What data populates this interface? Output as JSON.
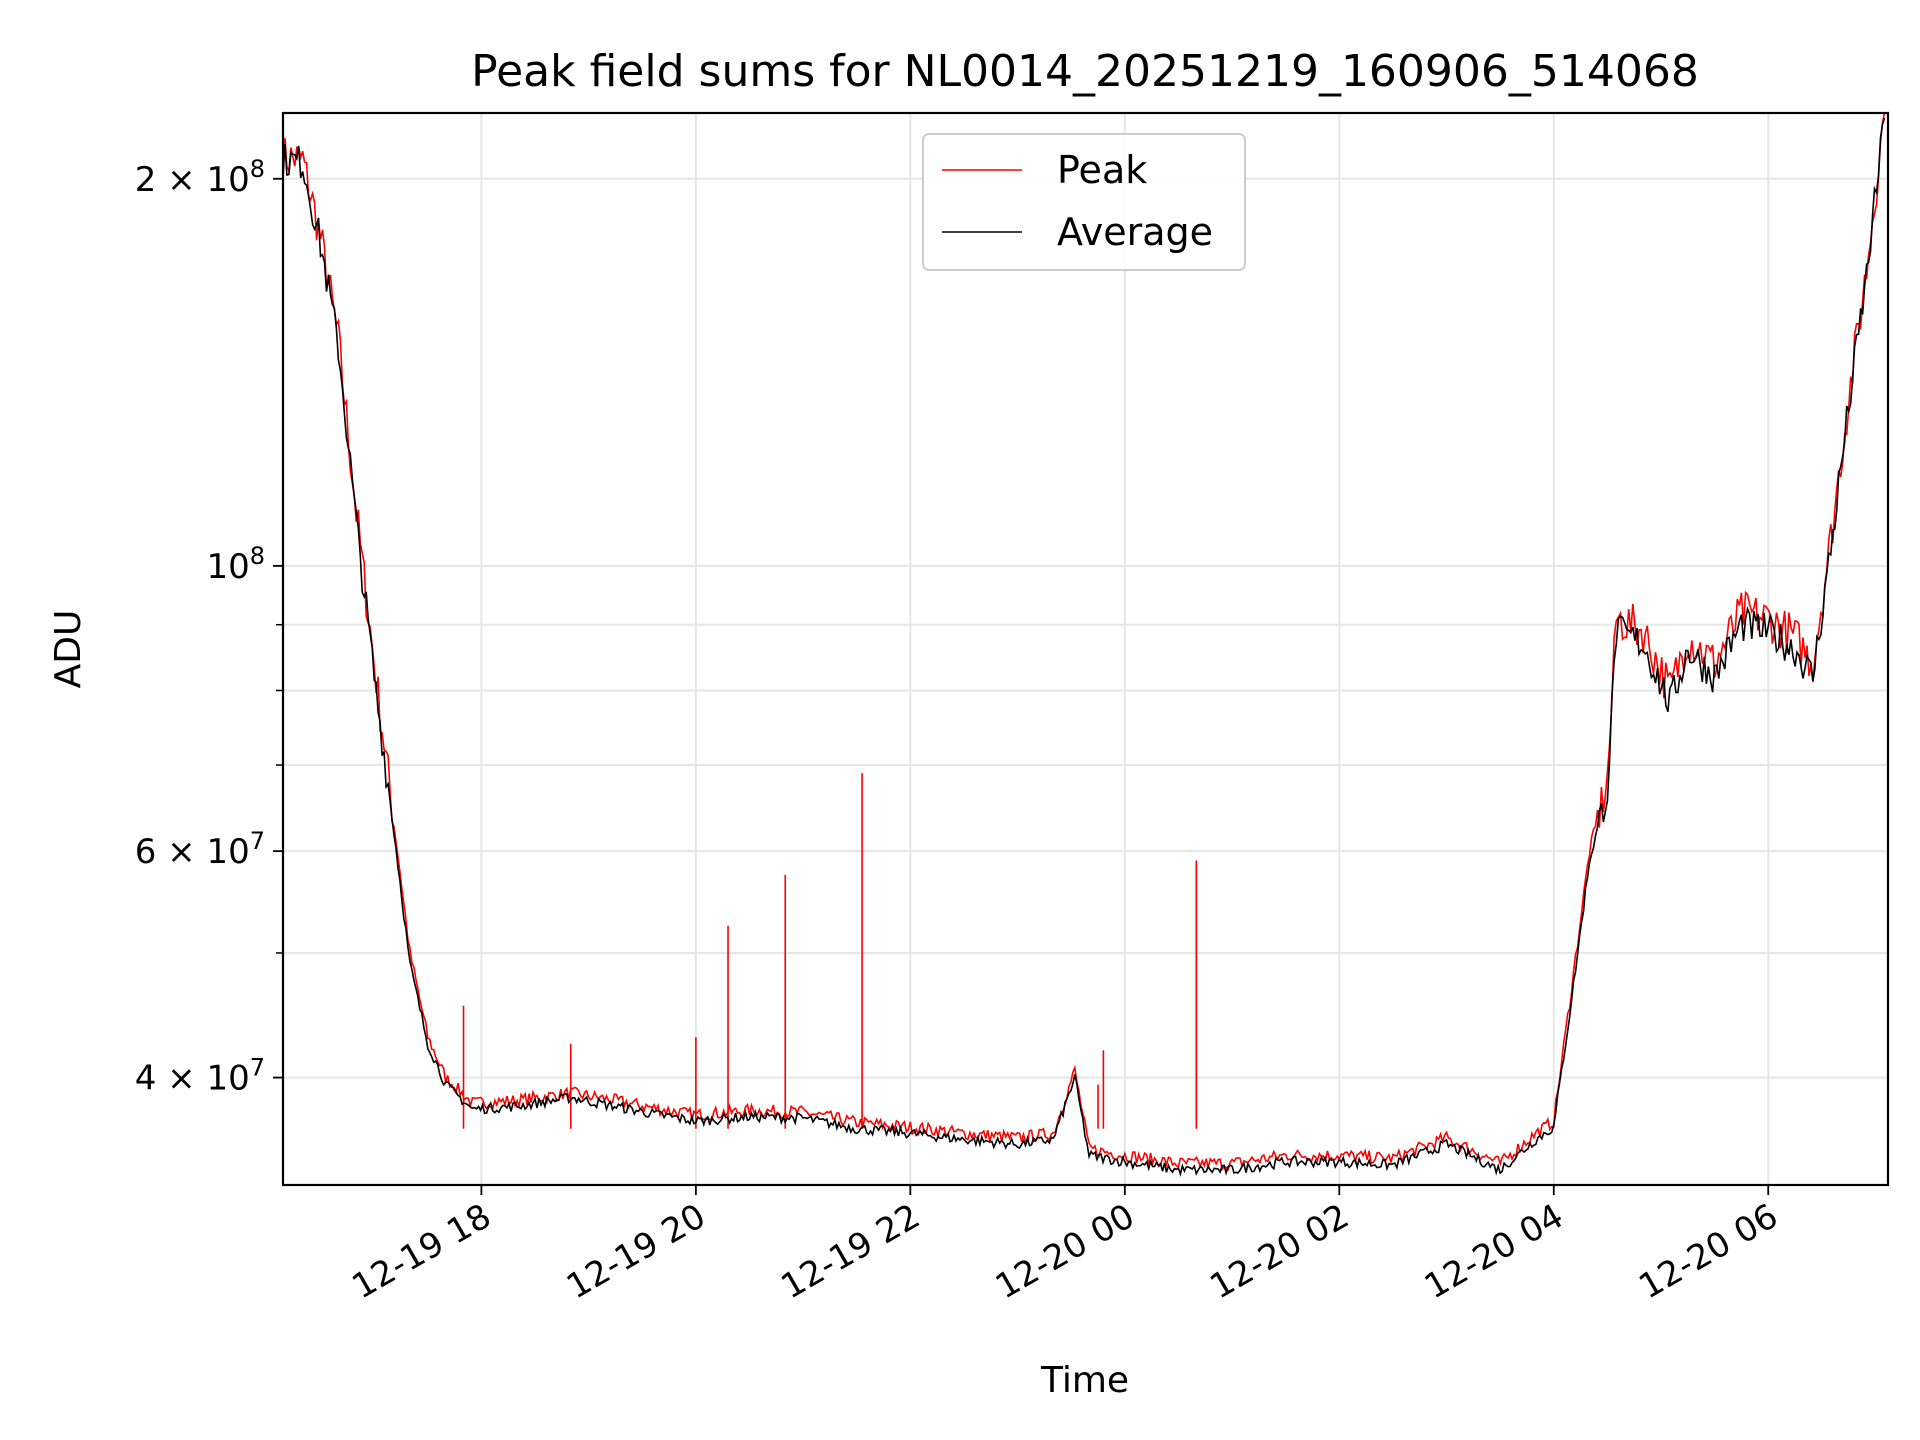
{
  "chart_data": {
    "type": "line",
    "title": "Peak field sums for NL0014_20251219_160906_514068",
    "xlabel": "Time",
    "ylabel": "ADU",
    "yscale": "log",
    "xlim": [
      "2025-12-19 16:09",
      "2025-12-20 07:07"
    ],
    "ylim": [
      33000000,
      225000000
    ],
    "grid": true,
    "legend_position": "top-center",
    "x_ticks": [
      {
        "t": "2025-12-19 18:00",
        "label": "12-19 18"
      },
      {
        "t": "2025-12-19 20:00",
        "label": "12-19 20"
      },
      {
        "t": "2025-12-19 22:00",
        "label": "12-19 22"
      },
      {
        "t": "2025-12-20 00:00",
        "label": "12-20 00"
      },
      {
        "t": "2025-12-20 02:00",
        "label": "12-20 02"
      },
      {
        "t": "2025-12-20 04:00",
        "label": "12-20 04"
      },
      {
        "t": "2025-12-20 06:00",
        "label": "12-20 06"
      }
    ],
    "y_ticks": [
      {
        "value": 200000000,
        "label": "2 × 10^8",
        "mant": "2",
        "exp": "8"
      },
      {
        "value": 100000000,
        "label": "10^8",
        "mant": "",
        "exp": "8"
      },
      {
        "value": 60000000,
        "label": "6 × 10^7",
        "mant": "6",
        "exp": "7"
      },
      {
        "value": 40000000,
        "label": "4 × 10^7",
        "mant": "4",
        "exp": "7"
      }
    ],
    "series": [
      {
        "name": "Peak",
        "color": "#ff0000",
        "points": [
          [
            "2025-12-19 16:09",
            208000000
          ],
          [
            "2025-12-19 16:20",
            207000000
          ],
          [
            "2025-12-19 16:30",
            180000000
          ],
          [
            "2025-12-19 16:40",
            150000000
          ],
          [
            "2025-12-19 16:50",
            110000000
          ],
          [
            "2025-12-19 17:00",
            84000000
          ],
          [
            "2025-12-19 17:10",
            65000000
          ],
          [
            "2025-12-19 17:20",
            50000000
          ],
          [
            "2025-12-19 17:30",
            43000000
          ],
          [
            "2025-12-19 17:40",
            40000000
          ],
          [
            "2025-12-19 17:55",
            38200000
          ],
          [
            "2025-12-19 18:20",
            38400000
          ],
          [
            "2025-12-19 18:50",
            38900000
          ],
          [
            "2025-12-19 19:10",
            38500000
          ],
          [
            "2025-12-19 19:40",
            37800000
          ],
          [
            "2025-12-19 20:00",
            37400000
          ],
          [
            "2025-12-19 20:30",
            37700000
          ],
          [
            "2025-12-19 21:00",
            37600000
          ],
          [
            "2025-12-19 21:30",
            36900000
          ],
          [
            "2025-12-19 22:00",
            36600000
          ],
          [
            "2025-12-19 22:30",
            36200000
          ],
          [
            "2025-12-19 23:00",
            35900000
          ],
          [
            "2025-12-19 23:20",
            36200000
          ],
          [
            "2025-12-19 23:32",
            40500000
          ],
          [
            "2025-12-19 23:40",
            35200000
          ],
          [
            "2025-12-20 00:00",
            34800000
          ],
          [
            "2025-12-20 00:30",
            34300000
          ],
          [
            "2025-12-20 01:00",
            34300000
          ],
          [
            "2025-12-20 01:30",
            34800000
          ],
          [
            "2025-12-20 02:00",
            34800000
          ],
          [
            "2025-12-20 02:30",
            34600000
          ],
          [
            "2025-12-20 03:00",
            35900000
          ],
          [
            "2025-12-20 03:30",
            34300000
          ],
          [
            "2025-12-20 03:50",
            36200000
          ],
          [
            "2025-12-20 04:00",
            37000000
          ],
          [
            "2025-12-20 04:10",
            47000000
          ],
          [
            "2025-12-20 04:20",
            60000000
          ],
          [
            "2025-12-20 04:30",
            68000000
          ],
          [
            "2025-12-20 04:35",
            91000000
          ],
          [
            "2025-12-20 04:50",
            89000000
          ],
          [
            "2025-12-20 05:05",
            80000000
          ],
          [
            "2025-12-20 05:15",
            88000000
          ],
          [
            "2025-12-20 05:30",
            84000000
          ],
          [
            "2025-12-20 05:45",
            92000000
          ],
          [
            "2025-12-20 06:00",
            91000000
          ],
          [
            "2025-12-20 06:15",
            88000000
          ],
          [
            "2025-12-20 06:25",
            84000000
          ],
          [
            "2025-12-20 06:35",
            105000000
          ],
          [
            "2025-12-20 06:45",
            135000000
          ],
          [
            "2025-12-20 06:55",
            170000000
          ],
          [
            "2025-12-20 07:05",
            225000000
          ]
        ],
        "spikes": [
          [
            "2025-12-19 17:50",
            45500000
          ],
          [
            "2025-12-19 18:50",
            42500000
          ],
          [
            "2025-12-19 20:00",
            43000000
          ],
          [
            "2025-12-19 20:18",
            52500000
          ],
          [
            "2025-12-19 20:50",
            57500000
          ],
          [
            "2025-12-19 21:33",
            69000000
          ],
          [
            "2025-12-19 23:35",
            36500000
          ],
          [
            "2025-12-19 23:45",
            39500000
          ],
          [
            "2025-12-19 23:48",
            42000000
          ],
          [
            "2025-12-20 00:40",
            59000000
          ]
        ]
      },
      {
        "name": "Average",
        "color": "#000000",
        "points": [
          [
            "2025-12-19 16:09",
            207000000
          ],
          [
            "2025-12-19 16:20",
            206000000
          ],
          [
            "2025-12-19 16:30",
            178000000
          ],
          [
            "2025-12-19 16:40",
            148000000
          ],
          [
            "2025-12-19 16:50",
            108000000
          ],
          [
            "2025-12-19 17:00",
            82000000
          ],
          [
            "2025-12-19 17:10",
            64000000
          ],
          [
            "2025-12-19 17:20",
            49000000
          ],
          [
            "2025-12-19 17:30",
            42500000
          ],
          [
            "2025-12-19 17:40",
            39500000
          ],
          [
            "2025-12-19 17:55",
            37800000
          ],
          [
            "2025-12-19 18:20",
            38000000
          ],
          [
            "2025-12-19 18:50",
            38600000
          ],
          [
            "2025-12-19 19:10",
            38100000
          ],
          [
            "2025-12-19 19:40",
            37400000
          ],
          [
            "2025-12-19 20:00",
            37000000
          ],
          [
            "2025-12-19 20:30",
            37300000
          ],
          [
            "2025-12-19 21:00",
            37200000
          ],
          [
            "2025-12-19 21:30",
            36500000
          ],
          [
            "2025-12-19 22:00",
            36200000
          ],
          [
            "2025-12-19 22:30",
            35800000
          ],
          [
            "2025-12-19 23:00",
            35500000
          ],
          [
            "2025-12-19 23:20",
            35800000
          ],
          [
            "2025-12-19 23:32",
            40000000
          ],
          [
            "2025-12-19 23:40",
            34800000
          ],
          [
            "2025-12-20 00:00",
            34400000
          ],
          [
            "2025-12-20 00:30",
            33900000
          ],
          [
            "2025-12-20 01:00",
            33900000
          ],
          [
            "2025-12-20 01:30",
            34400000
          ],
          [
            "2025-12-20 02:00",
            34400000
          ],
          [
            "2025-12-20 02:30",
            34200000
          ],
          [
            "2025-12-20 03:00",
            35500000
          ],
          [
            "2025-12-20 03:30",
            33900000
          ],
          [
            "2025-12-20 03:50",
            35800000
          ],
          [
            "2025-12-20 04:00",
            36600000
          ],
          [
            "2025-12-20 04:10",
            46000000
          ],
          [
            "2025-12-20 04:20",
            59000000
          ],
          [
            "2025-12-20 04:30",
            67000000
          ],
          [
            "2025-12-20 04:35",
            89000000
          ],
          [
            "2025-12-20 04:50",
            87000000
          ],
          [
            "2025-12-20 05:05",
            78000000
          ],
          [
            "2025-12-20 05:15",
            86000000
          ],
          [
            "2025-12-20 05:30",
            82000000
          ],
          [
            "2025-12-20 05:45",
            90000000
          ],
          [
            "2025-12-20 06:00",
            89000000
          ],
          [
            "2025-12-20 06:15",
            86000000
          ],
          [
            "2025-12-20 06:25",
            82000000
          ],
          [
            "2025-12-20 06:35",
            103000000
          ],
          [
            "2025-12-20 06:45",
            133000000
          ],
          [
            "2025-12-20 06:55",
            168000000
          ],
          [
            "2025-12-20 07:05",
            223000000
          ]
        ]
      }
    ]
  }
}
